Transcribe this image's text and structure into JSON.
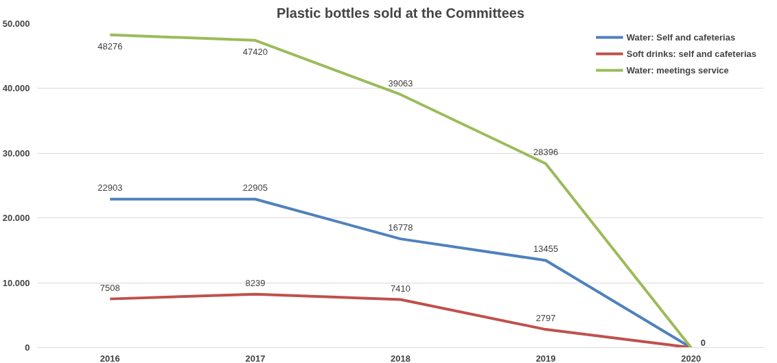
{
  "chart_data": {
    "type": "line",
    "title": "Plastic bottles sold at the Committees",
    "categories": [
      "2016",
      "2017",
      "2018",
      "2019",
      "2020"
    ],
    "series": [
      {
        "name": "Water: Self and cafeterias",
        "color": "#4f81bd",
        "values": [
          22903,
          22905,
          16778,
          13455,
          0
        ],
        "value_labels": [
          "22903",
          "22905",
          "16778",
          "13455",
          null
        ]
      },
      {
        "name": "Soft drinks: self and cafeterias",
        "color": "#c0504d",
        "values": [
          7508,
          8239,
          7410,
          2797,
          0
        ],
        "value_labels": [
          "7508",
          "8239",
          "7410",
          "2797",
          null
        ]
      },
      {
        "name": "Water: meetings service",
        "color": "#9bbb59",
        "values": [
          48276,
          47420,
          39063,
          28396,
          0
        ],
        "value_labels": [
          "48276",
          "47420",
          "39063",
          "28396",
          "0"
        ]
      }
    ],
    "ylim": [
      0,
      50000
    ],
    "yticks": [
      {
        "value": 0,
        "label": "0"
      },
      {
        "value": 10000,
        "label": "10.000"
      },
      {
        "value": 20000,
        "label": "20.000"
      },
      {
        "value": 30000,
        "label": "30.000"
      },
      {
        "value": 40000,
        "label": "40.000"
      },
      {
        "value": 50000,
        "label": "50.000"
      }
    ],
    "grid": "y",
    "legend": "top right",
    "marker": "none",
    "line_style": "solid"
  }
}
